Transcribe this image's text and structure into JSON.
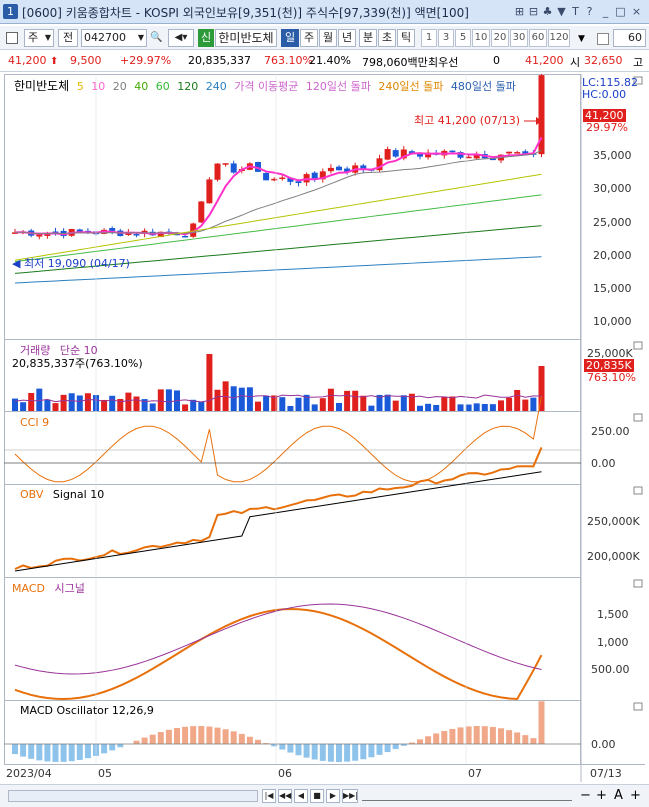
{
  "window": {
    "number": "1",
    "title": "[0600] 키움종합차트 - KOSPI 외국인보유[9,351(천)] 주식수[97,339(천)] 액면[100]",
    "icons": [
      "⊞",
      "⊟",
      "♣",
      "▼",
      "T",
      "?",
      "_",
      "□",
      "×"
    ]
  },
  "toolbar1": {
    "market_select": "주",
    "market_btn": "전",
    "code": "042700",
    "sound_icon": "speaker-icon",
    "credit_badge": "신",
    "stock_name": "한미반도체",
    "periods": [
      "일",
      "주",
      "월",
      "년",
      "분",
      "초",
      "틱"
    ],
    "selected_period": "일",
    "minutes": [
      "1",
      "3",
      "5",
      "10",
      "20",
      "30",
      "60",
      "120"
    ],
    "count": "60"
  },
  "toolbar2": {
    "price": "41,200",
    "change": "9,500",
    "change_pct": "+29.97%",
    "volume": "20,835,337",
    "volume_ratio": "763.10%",
    "turnover": "21.40%",
    "amount": "798,060백만",
    "best_label": "최우선",
    "best_value": "0",
    "price2": "41,200",
    "open_label": "시",
    "open_value": "32,650",
    "high_label": "고"
  },
  "price_panel": {
    "legend_name": "한미반도체",
    "ma_labels": [
      "5",
      "10",
      "20",
      "40",
      "60",
      "120",
      "240"
    ],
    "ma_colors": [
      "#e6b800",
      "#ff66cc",
      "#808080",
      "#44aa00",
      "#33bb33",
      "#1a7a1a",
      "#2b7fc0"
    ],
    "overlay_labels": [
      "가격 이동평균",
      "120일선 돌파",
      "240일선 돌파",
      "480일선 돌파"
    ],
    "overlay_colors": [
      "#cc66cc",
      "#cc66cc",
      "#dd8800",
      "#2b5fb0"
    ],
    "lc": "LC:115.82",
    "hc": "HC:0.00",
    "last_price": "41,200",
    "last_pct": "29.97%",
    "high_annotation": "최고 41,200 (07/13)",
    "low_annotation": "최저 19,090 (04/17)",
    "axis": [
      "35,000",
      "30,000",
      "25,000",
      "20,000",
      "15,000",
      "10,000"
    ]
  },
  "volume_panel": {
    "title": "거래량",
    "sub": "단순 10",
    "value": "20,835,337주(763.10%)",
    "axis_top": "25,000K",
    "last": "20,835K",
    "last_pct": "763.10%"
  },
  "cci_panel": {
    "title": "CCI 9",
    "axis": [
      "250.00",
      "0.00"
    ]
  },
  "obv_panel": {
    "title": "OBV",
    "sub": "Signal 10",
    "axis": [
      "250,000K",
      "200,000K"
    ]
  },
  "macd_panel": {
    "title": "MACD",
    "sub": "시그널",
    "axis": [
      "1,500",
      "1,000",
      "500.00"
    ]
  },
  "osc_panel": {
    "title": "MACD Oscillator 12,26,9",
    "axis": [
      "0.00"
    ]
  },
  "xaxis": {
    "labels": [
      "2023/04",
      "05",
      "06",
      "07"
    ],
    "right_label": "07/13"
  },
  "bottom": {
    "buttons": [
      "|◀",
      "◀◀",
      "◀",
      "■",
      "▶",
      "▶▶|"
    ],
    "zoom": [
      "−",
      "+",
      "A",
      "+"
    ]
  },
  "colors": {
    "up": "#e0201c",
    "down": "#1a5ad8",
    "macd": "#e8700a",
    "signal": "#993399",
    "obv": "#e8700a",
    "obv_signal": "#000000",
    "cci": "#e8700a"
  }
}
